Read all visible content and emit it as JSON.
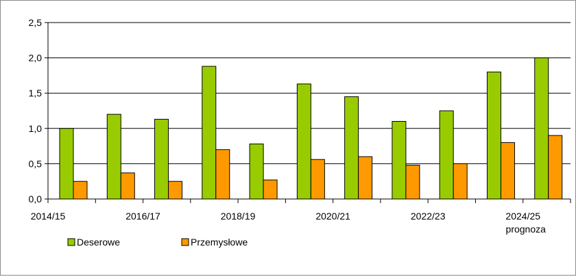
{
  "chart_data": {
    "type": "bar",
    "categories": [
      "2014/15",
      null,
      "2016/17",
      null,
      "2018/19",
      null,
      "2020/21",
      null,
      "2022/23",
      null,
      "2024/25\nprognoza"
    ],
    "series": [
      {
        "name": "Deserowe",
        "color": "#99cc00",
        "values": [
          1.0,
          1.2,
          1.13,
          1.88,
          0.78,
          1.63,
          1.45,
          1.1,
          1.25,
          1.8,
          2.0
        ]
      },
      {
        "name": "Przemysłowe",
        "color": "#ff9900",
        "values": [
          0.25,
          0.37,
          0.25,
          0.7,
          0.27,
          0.56,
          0.6,
          0.48,
          0.5,
          0.8,
          0.9
        ]
      }
    ],
    "ylim": [
      0,
      2.5
    ],
    "yticks": [
      {
        "value": 0,
        "label": "0,0"
      },
      {
        "value": 0.5,
        "label": "0,5"
      },
      {
        "value": 1.0,
        "label": "1,0"
      },
      {
        "value": 1.5,
        "label": "1,5"
      },
      {
        "value": 2.0,
        "label": "2,0"
      },
      {
        "value": 2.5,
        "label": "2,5"
      }
    ],
    "grid": true,
    "legend": "bottom"
  }
}
